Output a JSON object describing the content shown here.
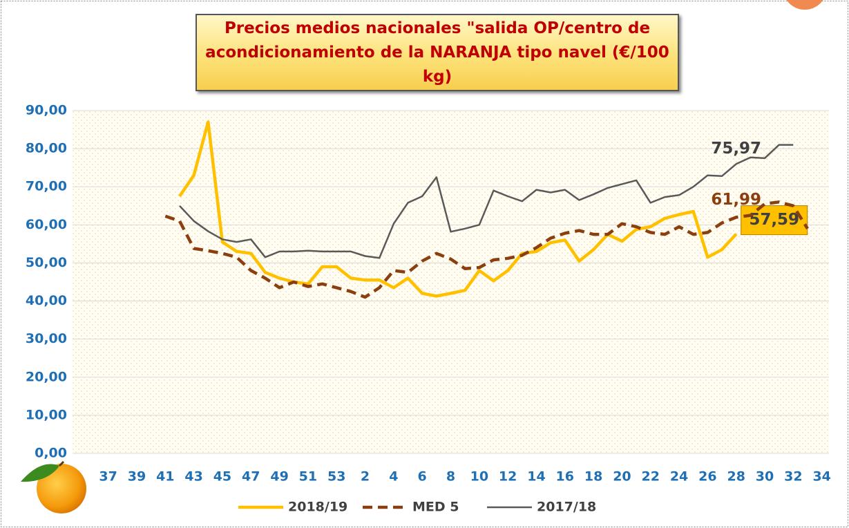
{
  "chart_data": {
    "type": "line",
    "title": "Precios medios nacionales \"salida OP/centro de acondicionamiento de la NARANJA  tipo navel (€/100 kg)",
    "categories": [
      null,
      null,
      "37",
      null,
      "39",
      null,
      "41",
      null,
      "43",
      null,
      "45",
      null,
      "47",
      null,
      "49",
      null,
      "51",
      null,
      "53",
      null,
      "2",
      null,
      "4",
      null,
      "6",
      null,
      "8",
      null,
      "10",
      null,
      "12",
      null,
      "14",
      null,
      "16",
      null,
      "18",
      null,
      "20",
      null,
      "22",
      null,
      "24",
      null,
      "26",
      null,
      "28",
      null,
      "30",
      null,
      "32",
      null,
      "34"
    ],
    "ylim": [
      0,
      90
    ],
    "yticks": [
      {
        "value": 0,
        "label": "0,00"
      },
      {
        "value": 10,
        "label": "10,00"
      },
      {
        "value": 20,
        "label": "20,00"
      },
      {
        "value": 30,
        "label": "30,00"
      },
      {
        "value": 40,
        "label": "40,00"
      },
      {
        "value": 50,
        "label": "50,00"
      },
      {
        "value": 60,
        "label": "60,00"
      },
      {
        "value": 70,
        "label": "70,00"
      },
      {
        "value": 80,
        "label": "80,00"
      },
      {
        "value": 90,
        "label": "90,00"
      }
    ],
    "grid": true,
    "series": [
      {
        "name": "2018/19",
        "color": "#ffc000",
        "values": [
          null,
          null,
          null,
          null,
          null,
          null,
          null,
          67.5,
          73,
          87,
          55.5,
          53,
          52.5,
          47.5,
          46,
          45,
          44.5,
          49,
          49,
          46,
          45.5,
          45.5,
          43.5,
          46,
          42,
          41.3,
          42,
          42.8,
          48,
          45.3,
          48,
          52.5,
          53,
          55.3,
          56,
          50.5,
          53.5,
          57.5,
          55.7,
          58.8,
          59.5,
          61.7,
          62.7,
          63.5,
          51.5,
          53.5,
          57.59,
          null,
          null,
          null,
          null,
          null,
          null
        ],
        "value_labels": [
          null,
          null,
          null,
          null,
          null,
          null,
          null,
          null,
          null,
          null,
          null,
          null,
          null,
          null,
          null,
          null,
          null,
          null,
          null,
          null,
          null,
          null,
          null,
          null,
          null,
          null,
          null,
          null,
          null,
          null,
          null,
          null,
          null,
          null,
          null,
          null,
          null,
          null,
          null,
          null,
          null,
          null,
          null,
          null,
          null,
          null,
          "57,59",
          null,
          null,
          null,
          null,
          null,
          null
        ]
      },
      {
        "name": "MED 5",
        "color": "#8b3f0f",
        "dashed": true,
        "values": [
          null,
          null,
          null,
          null,
          null,
          null,
          62.3,
          61,
          53.8,
          53.2,
          52.5,
          51.5,
          48,
          46,
          43.5,
          45,
          43.8,
          44.5,
          43.5,
          42.5,
          41,
          43.5,
          48,
          47.5,
          50.5,
          52.5,
          51,
          48.5,
          48.8,
          50.8,
          51.2,
          52,
          54,
          56.5,
          57.8,
          58.5,
          57.5,
          57.5,
          60.3,
          59.5,
          58,
          57.5,
          59.5,
          57.5,
          58,
          60.5,
          61.99,
          62.5,
          65.5,
          66,
          65,
          59,
          null
        ],
        "value_labels": [
          null,
          null,
          null,
          null,
          null,
          null,
          null,
          null,
          null,
          null,
          null,
          null,
          null,
          null,
          null,
          null,
          null,
          null,
          null,
          null,
          null,
          null,
          null,
          null,
          null,
          null,
          null,
          null,
          null,
          null,
          null,
          null,
          null,
          null,
          null,
          null,
          null,
          null,
          null,
          null,
          null,
          null,
          null,
          null,
          null,
          null,
          "61,99",
          null,
          null,
          null,
          null,
          null,
          null
        ]
      },
      {
        "name": "2017/18",
        "color": "#595959",
        "values": [
          null,
          null,
          null,
          null,
          null,
          null,
          null,
          65,
          61,
          58.3,
          56.2,
          55.5,
          56.2,
          51.5,
          53,
          53,
          53.2,
          53,
          53,
          53,
          51.8,
          51.3,
          60.3,
          65.8,
          67.5,
          72.5,
          58.2,
          59,
          60,
          69,
          67.5,
          66.2,
          69.2,
          68.5,
          69.2,
          66.5,
          68,
          69.7,
          70.7,
          71.7,
          65.8,
          67.3,
          67.8,
          70,
          73,
          72.8,
          75.97,
          77.7,
          77.5,
          81,
          81,
          null,
          null
        ],
        "value_labels": [
          null,
          null,
          null,
          null,
          null,
          null,
          null,
          null,
          null,
          null,
          null,
          null,
          null,
          null,
          null,
          null,
          null,
          null,
          null,
          null,
          null,
          null,
          null,
          null,
          null,
          null,
          null,
          null,
          null,
          null,
          null,
          null,
          null,
          null,
          null,
          null,
          null,
          null,
          null,
          null,
          null,
          null,
          null,
          null,
          null,
          null,
          "75,97",
          null,
          null,
          null,
          null,
          null,
          null
        ]
      }
    ]
  }
}
